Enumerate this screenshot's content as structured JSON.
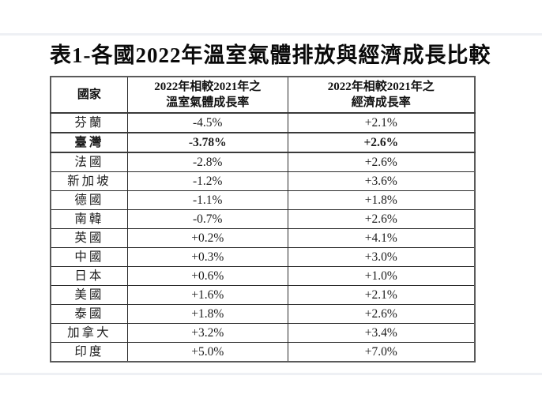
{
  "page": {
    "title": "表1-各國2022年溫室氣體排放與經濟成長比較"
  },
  "table": {
    "headers": {
      "country": "國家",
      "ghg_line1": "2022年相較2021年之",
      "ghg_line2": "溫室氣體成長率",
      "gdp_line1": "2022年相較2021年之",
      "gdp_line2": "經濟成長率"
    },
    "rows": [
      {
        "country": "芬蘭",
        "ghg": "-4.5%",
        "gdp": "+2.1%",
        "emphasis": false
      },
      {
        "country": "臺灣",
        "ghg": "-3.78%",
        "gdp": "+2.6%",
        "emphasis": true
      },
      {
        "country": "法國",
        "ghg": "-2.8%",
        "gdp": "+2.6%",
        "emphasis": false
      },
      {
        "country": "新加坡",
        "ghg": "-1.2%",
        "gdp": "+3.6%",
        "emphasis": false
      },
      {
        "country": "德國",
        "ghg": "-1.1%",
        "gdp": "+1.8%",
        "emphasis": false
      },
      {
        "country": "南韓",
        "ghg": "-0.7%",
        "gdp": "+2.6%",
        "emphasis": false
      },
      {
        "country": "英國",
        "ghg": "+0.2%",
        "gdp": "+4.1%",
        "emphasis": false
      },
      {
        "country": "中國",
        "ghg": "+0.3%",
        "gdp": "+3.0%",
        "emphasis": false
      },
      {
        "country": "日本",
        "ghg": "+0.6%",
        "gdp": "+1.0%",
        "emphasis": false
      },
      {
        "country": "美國",
        "ghg": "+1.6%",
        "gdp": "+2.1%",
        "emphasis": false
      },
      {
        "country": "泰國",
        "ghg": "+1.8%",
        "gdp": "+2.6%",
        "emphasis": false
      },
      {
        "country": "加拿大",
        "ghg": "+3.2%",
        "gdp": "+3.4%",
        "emphasis": false
      },
      {
        "country": "印度",
        "ghg": "+5.0%",
        "gdp": "+7.0%",
        "emphasis": false
      }
    ]
  },
  "colors": {
    "background": "#ffffff",
    "text": "#111111",
    "table_border_outer": "#5a5a5a",
    "table_border_inner": "#2b2b2b",
    "page_break_line": "#eef0f4"
  }
}
